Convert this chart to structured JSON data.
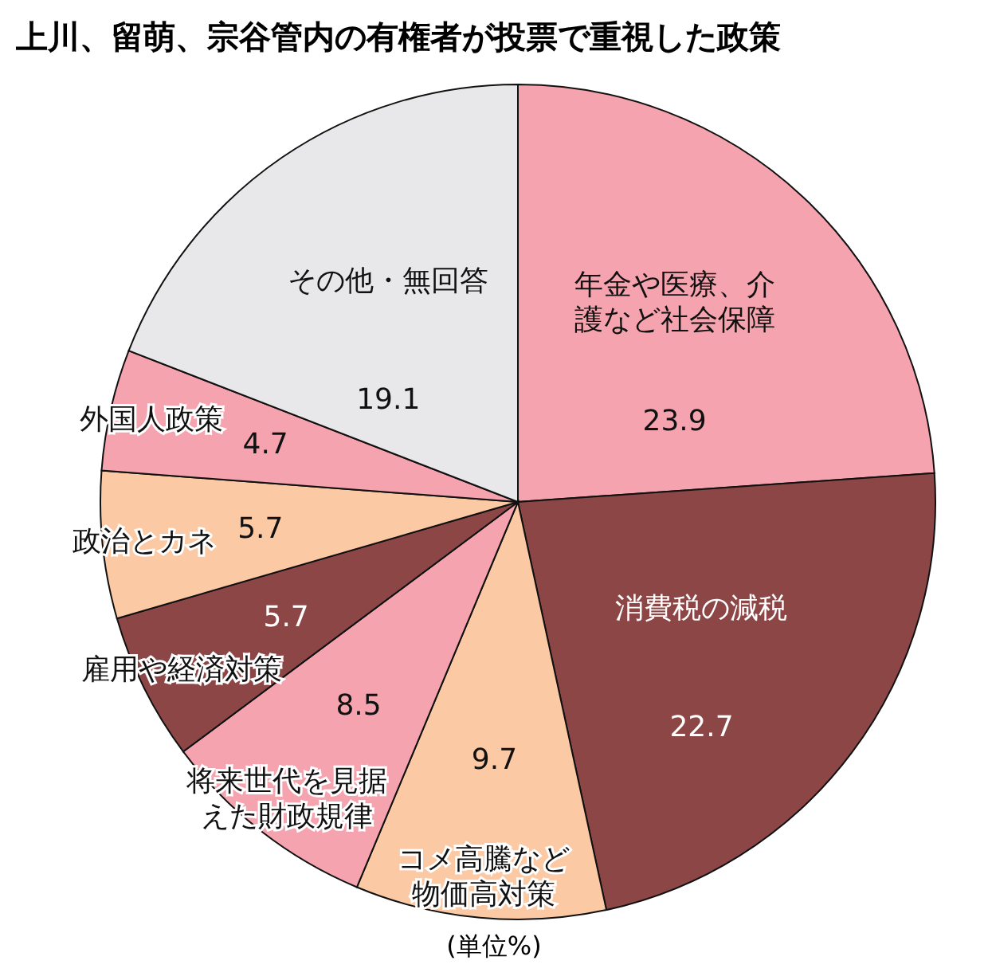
{
  "chart_data": {
    "type": "pie",
    "title": "上川、留萌、宗谷管内の有権者が投票で重視した政策",
    "categories": [
      "年金や医療、介護など社会保障",
      "消費税の減税",
      "コメ高騰など物価高対策",
      "将来世代を見据えた財政規律",
      "雇用や経済対策",
      "政治とカネ",
      "外国人政策",
      "その他・無回答"
    ],
    "values": [
      23.9,
      22.7,
      9.7,
      8.5,
      5.7,
      5.7,
      4.7,
      19.1
    ],
    "colors": [
      "#f5a3ae",
      "#8c4646",
      "#fcc9a5",
      "#f5a3ae",
      "#8c4646",
      "#fcc9a5",
      "#f5a3ae",
      "#e8e8eb"
    ],
    "data_labels": true,
    "annotations": [
      "(単位%)"
    ]
  }
}
